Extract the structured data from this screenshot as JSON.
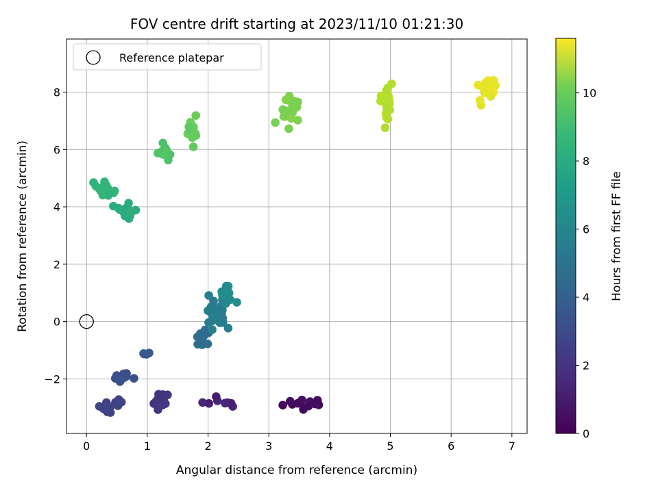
{
  "chart_data": {
    "type": "scatter",
    "title": "FOV centre drift starting at 2023/11/10 01:21:30",
    "xlabel": "Angular distance from reference (arcmin)",
    "ylabel": "Rotation from reference (arcmin)",
    "xlim": [
      -0.33,
      7.25
    ],
    "ylim": [
      -3.9,
      9.85
    ],
    "xticks": [
      0,
      1,
      2,
      3,
      4,
      5,
      6,
      7
    ],
    "yticks": [
      -2,
      0,
      2,
      4,
      6,
      8
    ],
    "ytick_labels": [
      "−2",
      "0",
      "2",
      "4",
      "6",
      "8"
    ],
    "grid": true,
    "legend": {
      "placement": "upper-left",
      "entries": [
        "Reference platepar"
      ]
    },
    "reference_point": {
      "x": 0,
      "y": 0
    },
    "colormap": "viridis",
    "colorbar": {
      "label": "Hours from first FF file",
      "range": [
        0,
        11.6
      ],
      "ticks": [
        0,
        2,
        4,
        6,
        8,
        10
      ]
    },
    "clusters": [
      {
        "hour": 0.4,
        "cx": 3.6,
        "cy": -2.85,
        "sx": 0.3,
        "sy": 0.2,
        "n": 14
      },
      {
        "hour": 1.1,
        "cx": 2.2,
        "cy": -2.8,
        "sx": 0.3,
        "sy": 0.15,
        "n": 8
      },
      {
        "hour": 1.8,
        "cx": 1.2,
        "cy": -2.75,
        "sx": 0.15,
        "sy": 0.22,
        "n": 14
      },
      {
        "hour": 2.3,
        "cx": 0.35,
        "cy": -2.9,
        "sx": 0.2,
        "sy": 0.2,
        "n": 12
      },
      {
        "hour": 2.9,
        "cx": 0.6,
        "cy": -2.0,
        "sx": 0.12,
        "sy": 0.18,
        "n": 12
      },
      {
        "hour": 3.3,
        "cx": 0.95,
        "cy": -1.1,
        "sx": 0.05,
        "sy": 0.12,
        "n": 4
      },
      {
        "hour": 4.2,
        "cx": 1.9,
        "cy": -0.7,
        "sx": 0.13,
        "sy": 0.35,
        "n": 14
      },
      {
        "hour": 4.9,
        "cx": 2.15,
        "cy": 0.3,
        "sx": 0.15,
        "sy": 0.4,
        "n": 30
      },
      {
        "hour": 5.6,
        "cx": 2.3,
        "cy": 1.0,
        "sx": 0.1,
        "sy": 0.5,
        "n": 18
      },
      {
        "hour": 7.2,
        "cx": 0.65,
        "cy": 3.85,
        "sx": 0.1,
        "sy": 0.25,
        "n": 18
      },
      {
        "hour": 7.6,
        "cx": 0.3,
        "cy": 4.6,
        "sx": 0.12,
        "sy": 0.2,
        "n": 20
      },
      {
        "hour": 8.4,
        "cx": 1.3,
        "cy": 5.95,
        "sx": 0.09,
        "sy": 0.22,
        "n": 12
      },
      {
        "hour": 8.8,
        "cx": 1.75,
        "cy": 6.6,
        "sx": 0.08,
        "sy": 0.35,
        "n": 14
      },
      {
        "hour": 9.3,
        "cx": 3.35,
        "cy": 7.4,
        "sx": 0.12,
        "sy": 0.5,
        "n": 26
      },
      {
        "hour": 10.3,
        "cx": 4.93,
        "cy": 7.7,
        "sx": 0.07,
        "sy": 0.6,
        "n": 26
      },
      {
        "hour": 11.2,
        "cx": 6.55,
        "cy": 8.1,
        "sx": 0.13,
        "sy": 0.55,
        "n": 22
      }
    ]
  }
}
